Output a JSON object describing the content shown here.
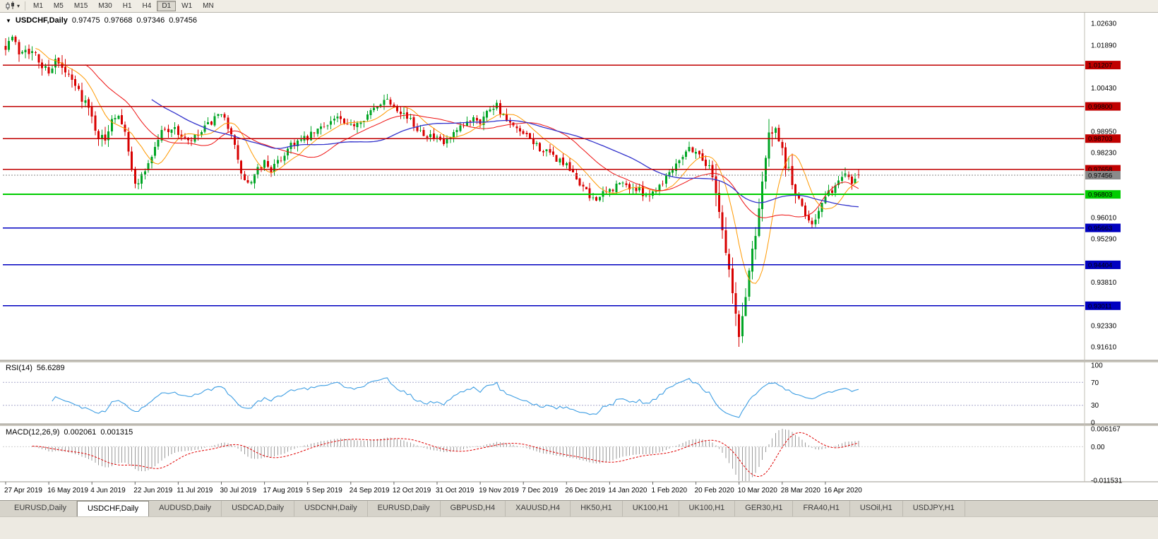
{
  "icons": {
    "collapse": "▼",
    "dropdown": "▾"
  },
  "toolbar": {
    "chart_type_icon": "candlestick-chart",
    "timeframes": [
      "M1",
      "M5",
      "M15",
      "M30",
      "H1",
      "H4",
      "D1",
      "W1",
      "MN"
    ],
    "active_timeframe": "D1"
  },
  "chart": {
    "title": "USDCHF,Daily",
    "open": "0.97475",
    "high": "0.97668",
    "low": "0.97346",
    "close": "0.97456"
  },
  "rsi": {
    "name": "RSI(14)",
    "value": "56.6289",
    "scale": [
      "100",
      "70",
      "30",
      "0"
    ],
    "scale_values": [
      100,
      70,
      30,
      0
    ],
    "level_lines": [
      70,
      30
    ]
  },
  "macd": {
    "name": "MACD(12,26,9)",
    "value": "0.002061",
    "signal_value": "0.001315",
    "scale": [
      "0.006167",
      "0.00",
      "-0.011531"
    ],
    "scale_values": [
      0.006167,
      0,
      -0.011531
    ]
  },
  "tabs": [
    "EURUSD,Daily",
    "USDCHF,Daily",
    "AUDUSD,Daily",
    "USDCAD,Daily",
    "USDCNH,Daily",
    "EURUSD,Daily",
    "GBPUSD,H4",
    "XAUUSD,H4",
    "HK50,H1",
    "UK100,H1",
    "UK100,H1",
    "GER30,H1",
    "FRA40,H1",
    "USOil,H1",
    "USDJPY,H1"
  ],
  "active_tab_index": 1,
  "chart_data": {
    "type": "candlestick",
    "symbol": "USDCHF",
    "timeframe": "Daily",
    "price_axis": {
      "min": 0.9161,
      "max": 1.0263,
      "ticks": [
        "1.02630",
        "1.01890",
        "1.00430",
        "0.98950",
        "0.98230",
        "0.96010",
        "0.95290",
        "0.93810",
        "0.92330",
        "0.91610"
      ],
      "tick_values": [
        1.0263,
        1.0189,
        1.0043,
        0.9895,
        0.9823,
        0.9601,
        0.9529,
        0.9381,
        0.9233,
        0.9161
      ]
    },
    "hlines": [
      {
        "price": 1.01207,
        "label": "1.01207",
        "color": "#C00000",
        "width": 1.4
      },
      {
        "price": 0.998,
        "label": "0.99800",
        "color": "#C00000",
        "width": 1.4
      },
      {
        "price": 0.98703,
        "label": "0.98703",
        "color": "#C00000",
        "width": 1.4
      },
      {
        "price": 0.97658,
        "label": "0.97658",
        "color": "#C00000",
        "width": 1.4
      },
      {
        "price": 0.96803,
        "label": "0.96803",
        "color": "#00CC00",
        "width": 2
      },
      {
        "price": 0.95663,
        "label": "0.95663",
        "color": "#0000C0",
        "width": 1.6
      },
      {
        "price": 0.94404,
        "label": "0.94404",
        "color": "#0000C0",
        "width": 1.6
      },
      {
        "price": 0.93011,
        "label": "0.93011",
        "color": "#0000C0",
        "width": 1.6
      }
    ],
    "current_price": {
      "price": 0.97456,
      "label": "0.97456",
      "color": "#8A8A8A"
    },
    "date_labels": [
      "27 Apr 2019",
      "16 May 2019",
      "4 Jun 2019",
      "22 Jun 2019",
      "11 Jul 2019",
      "30 Jul 2019",
      "17 Aug 2019",
      "5 Sep 2019",
      "24 Sep 2019",
      "12 Oct 2019",
      "31 Oct 2019",
      "19 Nov 2019",
      "7 Dec 2019",
      "26 Dec 2019",
      "14 Jan 2020",
      "1 Feb 2020",
      "20 Feb 2020",
      "10 Mar 2020",
      "28 Mar 2020",
      "16 Apr 2020"
    ],
    "candles": {
      "count": 258,
      "label_step": 13,
      "anchors": [
        [
          0,
          1.019
        ],
        [
          2,
          1.0215
        ],
        [
          4,
          1.0165
        ],
        [
          6,
          1.0185
        ],
        [
          9,
          1.015
        ],
        [
          11,
          1.0115
        ],
        [
          13,
          1.0105
        ],
        [
          15,
          1.0135
        ],
        [
          18,
          1.0092
        ],
        [
          21,
          1.0048
        ],
        [
          24,
          0.9996
        ],
        [
          26,
          0.994
        ],
        [
          28,
          0.988
        ],
        [
          30,
          0.986
        ],
        [
          32,
          0.9948
        ],
        [
          34,
          0.9956
        ],
        [
          36,
          0.9902
        ],
        [
          38,
          0.9758
        ],
        [
          39,
          0.9715
        ],
        [
          41,
          0.9742
        ],
        [
          44,
          0.9812
        ],
        [
          47,
          0.9896
        ],
        [
          50,
          0.9906
        ],
        [
          52,
          0.989
        ],
        [
          55,
          0.9856
        ],
        [
          58,
          0.988
        ],
        [
          61,
          0.9916
        ],
        [
          64,
          0.9946
        ],
        [
          66,
          0.9934
        ],
        [
          68,
          0.9894
        ],
        [
          70,
          0.9788
        ],
        [
          72,
          0.9724
        ],
        [
          74,
          0.9716
        ],
        [
          76,
          0.9762
        ],
        [
          78,
          0.9792
        ],
        [
          80,
          0.9764
        ],
        [
          83,
          0.98
        ],
        [
          86,
          0.9856
        ],
        [
          89,
          0.9862
        ],
        [
          91,
          0.9872
        ],
        [
          94,
          0.9898
        ],
        [
          97,
          0.9926
        ],
        [
          100,
          0.9942
        ],
        [
          103,
          0.9906
        ],
        [
          106,
          0.9928
        ],
        [
          109,
          0.9952
        ],
        [
          112,
          0.9976
        ],
        [
          114,
          1.0012
        ],
        [
          117,
          0.9986
        ],
        [
          120,
          0.9956
        ],
        [
          123,
          0.9916
        ],
        [
          126,
          0.9892
        ],
        [
          129,
          0.9872
        ],
        [
          132,
          0.9852
        ],
        [
          135,
          0.9882
        ],
        [
          138,
          0.9912
        ],
        [
          141,
          0.9948
        ],
        [
          143,
          0.993
        ],
        [
          146,
          0.9976
        ],
        [
          148,
          0.9988
        ],
        [
          150,
          0.9942
        ],
        [
          153,
          0.9906
        ],
        [
          156,
          0.9882
        ],
        [
          159,
          0.9858
        ],
        [
          162,
          0.9828
        ],
        [
          165,
          0.9808
        ],
        [
          168,
          0.9788
        ],
        [
          171,
          0.9746
        ],
        [
          174,
          0.9706
        ],
        [
          176,
          0.9668
        ],
        [
          179,
          0.9672
        ],
        [
          182,
          0.9692
        ],
        [
          185,
          0.9718
        ],
        [
          188,
          0.9706
        ],
        [
          191,
          0.9692
        ],
        [
          194,
          0.9678
        ],
        [
          197,
          0.9712
        ],
        [
          200,
          0.9758
        ],
        [
          203,
          0.9806
        ],
        [
          206,
          0.9838
        ],
        [
          208,
          0.9828
        ],
        [
          210,
          0.98
        ],
        [
          212,
          0.9772
        ],
        [
          214,
          0.9708
        ],
        [
          216,
          0.956
        ],
        [
          218,
          0.942
        ],
        [
          220,
          0.9262
        ],
        [
          221,
          0.9196
        ],
        [
          222,
          0.9262
        ],
        [
          224,
          0.9422
        ],
        [
          226,
          0.9562
        ],
        [
          228,
          0.9732
        ],
        [
          230,
          0.9872
        ],
        [
          231,
          0.9902
        ],
        [
          233,
          0.9846
        ],
        [
          235,
          0.9792
        ],
        [
          237,
          0.9718
        ],
        [
          239,
          0.9656
        ],
        [
          241,
          0.9612
        ],
        [
          243,
          0.9586
        ],
        [
          245,
          0.9622
        ],
        [
          247,
          0.9668
        ],
        [
          249,
          0.9696
        ],
        [
          251,
          0.9722
        ],
        [
          253,
          0.9762
        ],
        [
          255,
          0.9724
        ],
        [
          257,
          0.9746
        ]
      ]
    },
    "last_candle": {
      "o": 0.97475,
      "h": 0.97668,
      "l": 0.97346,
      "c": 0.97456
    },
    "forced_low": {
      "index": 221,
      "low": 0.9161
    },
    "forced_high": {
      "index": 231,
      "high": 0.9912
    },
    "moving_averages": [
      {
        "period": 10,
        "color": "#FF9900",
        "width": 1
      },
      {
        "period": 25,
        "color": "#EE1111",
        "width": 1
      },
      {
        "period": 45,
        "color": "#3333CC",
        "width": 1.3
      }
    ],
    "rsi_period": 14,
    "macd_params": {
      "fast": 12,
      "slow": 26,
      "signal": 9
    },
    "colors": {
      "bull": "#00A524",
      "bear": "#D80000",
      "rsi_line": "#3E9EE3",
      "rsi_levels": "#A8A8CC",
      "macd_hist": "#9A9A9A",
      "macd_signal": "#E00000",
      "axis_separator": "#C2BFB6",
      "panel_separator": "#C8C5BC"
    }
  }
}
